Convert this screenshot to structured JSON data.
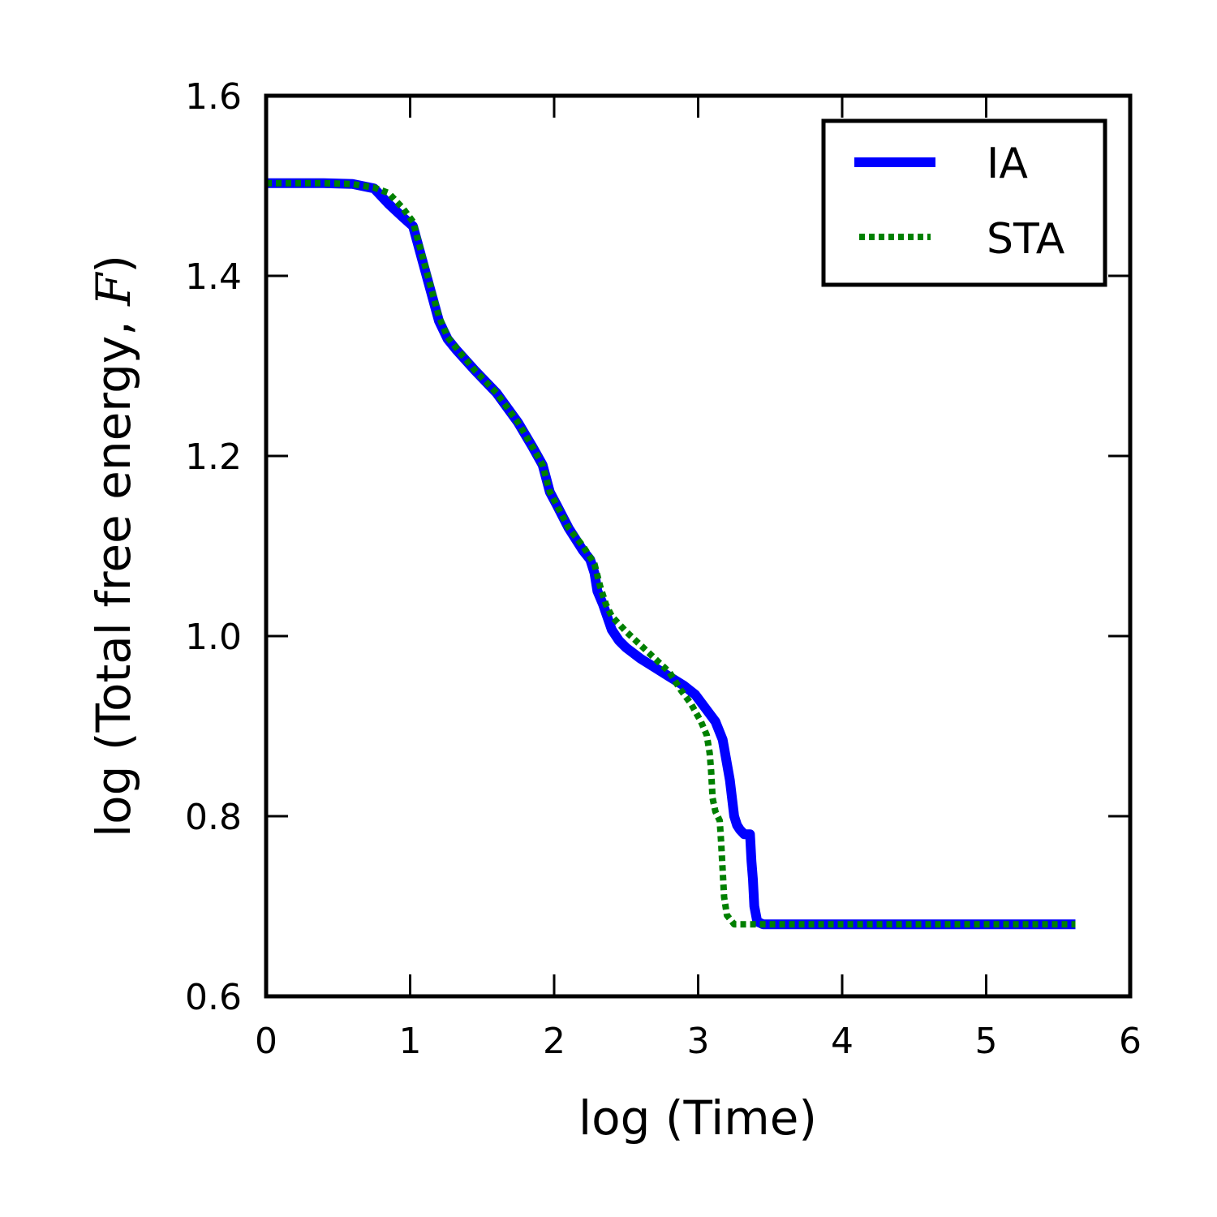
{
  "chart_data": {
    "type": "line",
    "xlabel": "log (Time)",
    "ylabel": "log (Total free energy, F)",
    "ylabel_parts": {
      "before": "log (Total free energy, ",
      "symbol": "F",
      "after": ")"
    },
    "xlim": [
      0,
      6
    ],
    "ylim": [
      0.6,
      1.6
    ],
    "xticks": [
      "0",
      "1",
      "2",
      "3",
      "4",
      "5",
      "6"
    ],
    "yticks": [
      "0.6",
      "0.8",
      "1.0",
      "1.2",
      "1.4",
      "1.6"
    ],
    "grid": false,
    "legend_position": "top-right",
    "series": [
      {
        "name": "IA",
        "style": "solid",
        "color": "#0000ff",
        "x": [
          0,
          0.4,
          0.6,
          0.75,
          0.85,
          0.95,
          1.02,
          1.08,
          1.14,
          1.2,
          1.26,
          1.32,
          1.45,
          1.6,
          1.75,
          1.85,
          1.92,
          1.97,
          2.02,
          2.1,
          2.2,
          2.25,
          2.28,
          2.3,
          2.34,
          2.4,
          2.45,
          2.5,
          2.6,
          2.7,
          2.8,
          2.9,
          2.98,
          3.05,
          3.12,
          3.17,
          3.22,
          3.25,
          3.27,
          3.29,
          3.32,
          3.36,
          3.37,
          3.38,
          3.39,
          3.41,
          3.45,
          4.0,
          4.5,
          5.0,
          5.62
        ],
        "y": [
          1.503,
          1.503,
          1.502,
          1.497,
          1.48,
          1.465,
          1.455,
          1.42,
          1.385,
          1.35,
          1.33,
          1.318,
          1.295,
          1.27,
          1.237,
          1.21,
          1.19,
          1.16,
          1.145,
          1.12,
          1.095,
          1.085,
          1.07,
          1.05,
          1.035,
          1.007,
          0.995,
          0.987,
          0.975,
          0.965,
          0.955,
          0.945,
          0.935,
          0.92,
          0.905,
          0.885,
          0.84,
          0.8,
          0.79,
          0.785,
          0.78,
          0.78,
          0.75,
          0.73,
          0.7,
          0.683,
          0.68,
          0.68,
          0.68,
          0.68,
          0.68
        ]
      },
      {
        "name": "STA",
        "style": "dotted",
        "color": "#008000",
        "x": [
          0,
          0.4,
          0.6,
          0.75,
          0.85,
          0.95,
          1.02,
          1.08,
          1.14,
          1.2,
          1.26,
          1.32,
          1.45,
          1.6,
          1.75,
          1.85,
          1.92,
          1.97,
          2.02,
          2.1,
          2.2,
          2.28,
          2.32,
          2.36,
          2.4,
          2.5,
          2.6,
          2.7,
          2.8,
          2.88,
          2.95,
          3.02,
          3.06,
          3.08,
          3.09,
          3.1,
          3.12,
          3.15,
          3.16,
          3.17,
          3.18,
          3.2,
          3.25,
          3.3,
          4.0,
          5.0,
          5.62
        ],
        "y": [
          1.503,
          1.503,
          1.502,
          1.498,
          1.492,
          1.475,
          1.46,
          1.425,
          1.39,
          1.355,
          1.332,
          1.32,
          1.295,
          1.27,
          1.237,
          1.21,
          1.19,
          1.16,
          1.145,
          1.12,
          1.1,
          1.08,
          1.055,
          1.035,
          1.022,
          1.005,
          0.99,
          0.975,
          0.96,
          0.94,
          0.925,
          0.905,
          0.89,
          0.87,
          0.85,
          0.82,
          0.805,
          0.795,
          0.77,
          0.74,
          0.71,
          0.69,
          0.68,
          0.68,
          0.68,
          0.68,
          0.68
        ]
      }
    ]
  }
}
